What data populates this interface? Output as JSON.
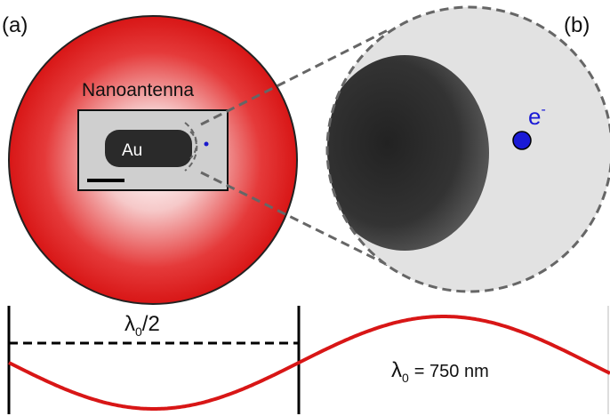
{
  "panels": {
    "a": "(a)",
    "b": "(b)"
  },
  "labels": {
    "nanoantenna": "Nanoantenna",
    "gold": "Au",
    "electron": {
      "symbol": "e",
      "superscript": "-"
    },
    "half_wavelength": {
      "symbol": "λ",
      "subscript": "0",
      "rest": "/2"
    },
    "wavelength": {
      "symbol": "λ",
      "subscript": "0",
      "rest": "= 750 nm"
    }
  }
}
